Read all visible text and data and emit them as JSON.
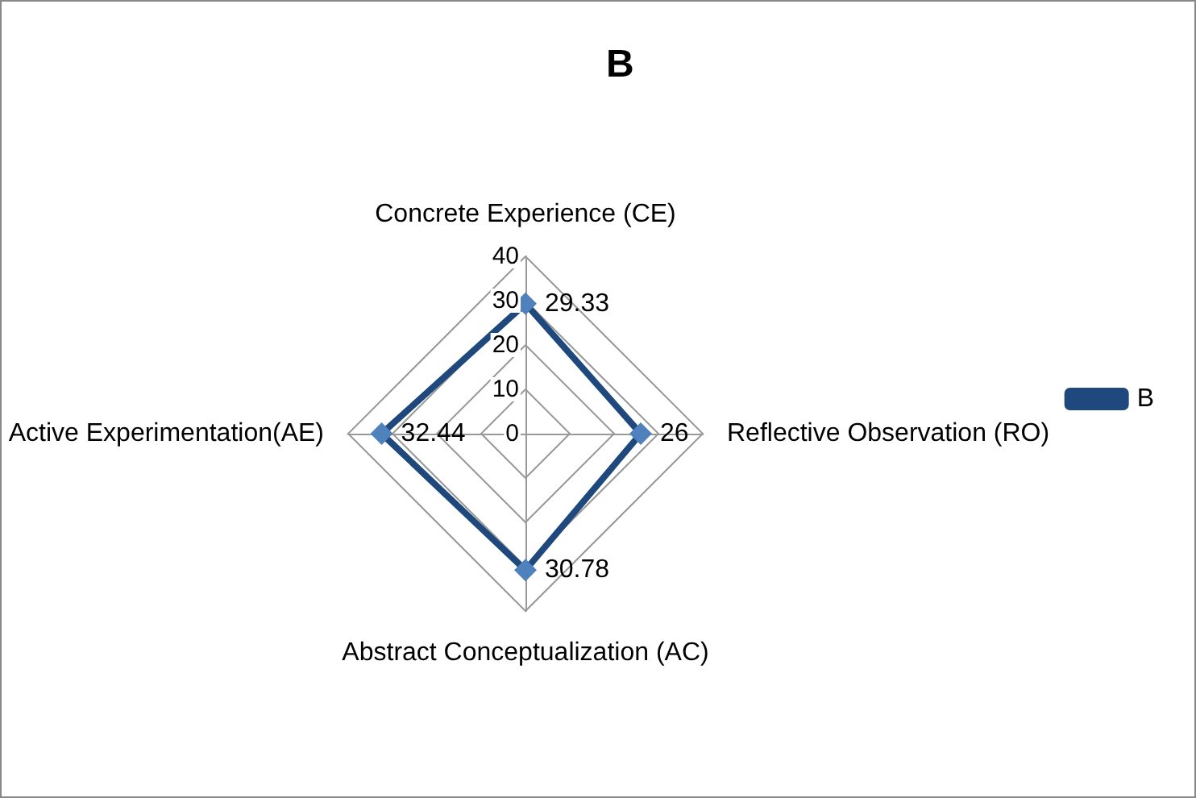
{
  "chart_data": {
    "type": "radar",
    "title": "B",
    "categories": [
      "Concrete Experience (CE)",
      "Reflective Observation (RO)",
      "Abstract Conceptualization (AC)",
      "Active Experimentation(AE)"
    ],
    "series": [
      {
        "name": "B",
        "color": "#1f497d",
        "values": [
          29.33,
          26,
          30.78,
          32.44
        ]
      }
    ],
    "ylim": [
      0,
      40
    ],
    "yticks": [
      0,
      10,
      20,
      30,
      40
    ],
    "marker": "diamond",
    "data_labels": true,
    "legend": "right",
    "grid": true
  }
}
